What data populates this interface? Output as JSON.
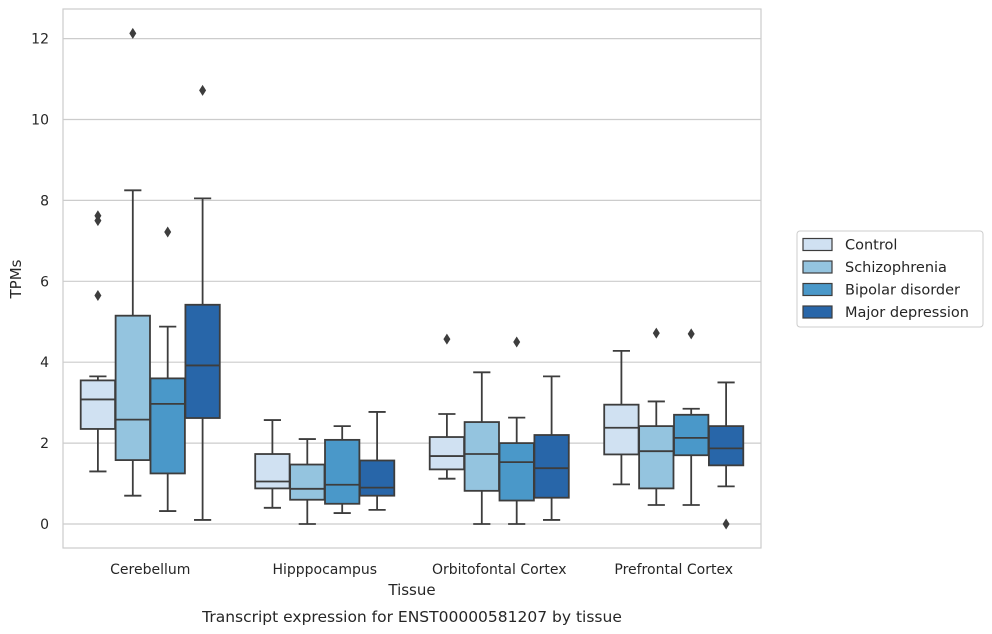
{
  "chart_data": {
    "type": "boxplot",
    "title": "",
    "caption": "Transcript expression for ENST00000581207 by tissue",
    "xlabel": "Tissue",
    "ylabel": "TPMs",
    "ylim": [
      -0.6,
      12.7
    ],
    "yticks": [
      0,
      2,
      4,
      6,
      8,
      10,
      12
    ],
    "grid": true,
    "legend_position": "right",
    "categories": [
      "Cerebellum",
      "Hipppocampus",
      "Orbitofontal Cortex",
      "Prefrontal Cortex"
    ],
    "series": [
      {
        "name": "Control",
        "color": "#d0e1f2",
        "boxes": [
          {
            "whislo": 1.3,
            "q1": 2.35,
            "median": 3.08,
            "q3": 3.55,
            "whishi": 3.65,
            "fliers": [
              7.62,
              7.5,
              5.65
            ]
          },
          {
            "whislo": 0.4,
            "q1": 0.88,
            "median": 1.05,
            "q3": 1.73,
            "whishi": 2.57,
            "fliers": []
          },
          {
            "whislo": 1.12,
            "q1": 1.35,
            "median": 1.68,
            "q3": 2.15,
            "whishi": 2.72,
            "fliers": [
              4.57
            ]
          },
          {
            "whislo": 0.98,
            "q1": 1.72,
            "median": 2.38,
            "q3": 2.95,
            "whishi": 4.28,
            "fliers": []
          }
        ]
      },
      {
        "name": "Schizophrenia",
        "color": "#94c4df",
        "boxes": [
          {
            "whislo": 0.7,
            "q1": 1.58,
            "median": 2.58,
            "q3": 5.15,
            "whishi": 8.25,
            "fliers": [
              12.13
            ]
          },
          {
            "whislo": 0.0,
            "q1": 0.6,
            "median": 0.87,
            "q3": 1.47,
            "whishi": 2.1,
            "fliers": []
          },
          {
            "whislo": 0.0,
            "q1": 0.82,
            "median": 1.73,
            "q3": 2.52,
            "whishi": 3.75,
            "fliers": []
          },
          {
            "whislo": 0.47,
            "q1": 0.88,
            "median": 1.8,
            "q3": 2.42,
            "whishi": 3.03,
            "fliers": [
              4.72
            ]
          }
        ]
      },
      {
        "name": "Bipolar disorder",
        "color": "#4a98c9",
        "boxes": [
          {
            "whislo": 0.32,
            "q1": 1.25,
            "median": 2.97,
            "q3": 3.6,
            "whishi": 4.88,
            "fliers": [
              7.22
            ]
          },
          {
            "whislo": 0.27,
            "q1": 0.5,
            "median": 0.97,
            "q3": 2.08,
            "whishi": 2.42,
            "fliers": []
          },
          {
            "whislo": 0.0,
            "q1": 0.58,
            "median": 1.53,
            "q3": 2.0,
            "whishi": 2.63,
            "fliers": [
              4.5
            ]
          },
          {
            "whislo": 0.47,
            "q1": 1.7,
            "median": 2.13,
            "q3": 2.7,
            "whishi": 2.85,
            "fliers": [
              4.7
            ]
          }
        ]
      },
      {
        "name": "Major depression",
        "color": "#2866a9",
        "boxes": [
          {
            "whislo": 0.1,
            "q1": 2.62,
            "median": 3.92,
            "q3": 5.42,
            "whishi": 8.05,
            "fliers": [
              10.72
            ]
          },
          {
            "whislo": 0.35,
            "q1": 0.7,
            "median": 0.9,
            "q3": 1.57,
            "whishi": 2.77,
            "fliers": []
          },
          {
            "whislo": 0.1,
            "q1": 0.65,
            "median": 1.38,
            "q3": 2.2,
            "whishi": 3.65,
            "fliers": []
          },
          {
            "whislo": 0.93,
            "q1": 1.45,
            "median": 1.87,
            "q3": 2.42,
            "whishi": 3.5,
            "fliers": [
              0.0
            ]
          }
        ]
      }
    ]
  }
}
